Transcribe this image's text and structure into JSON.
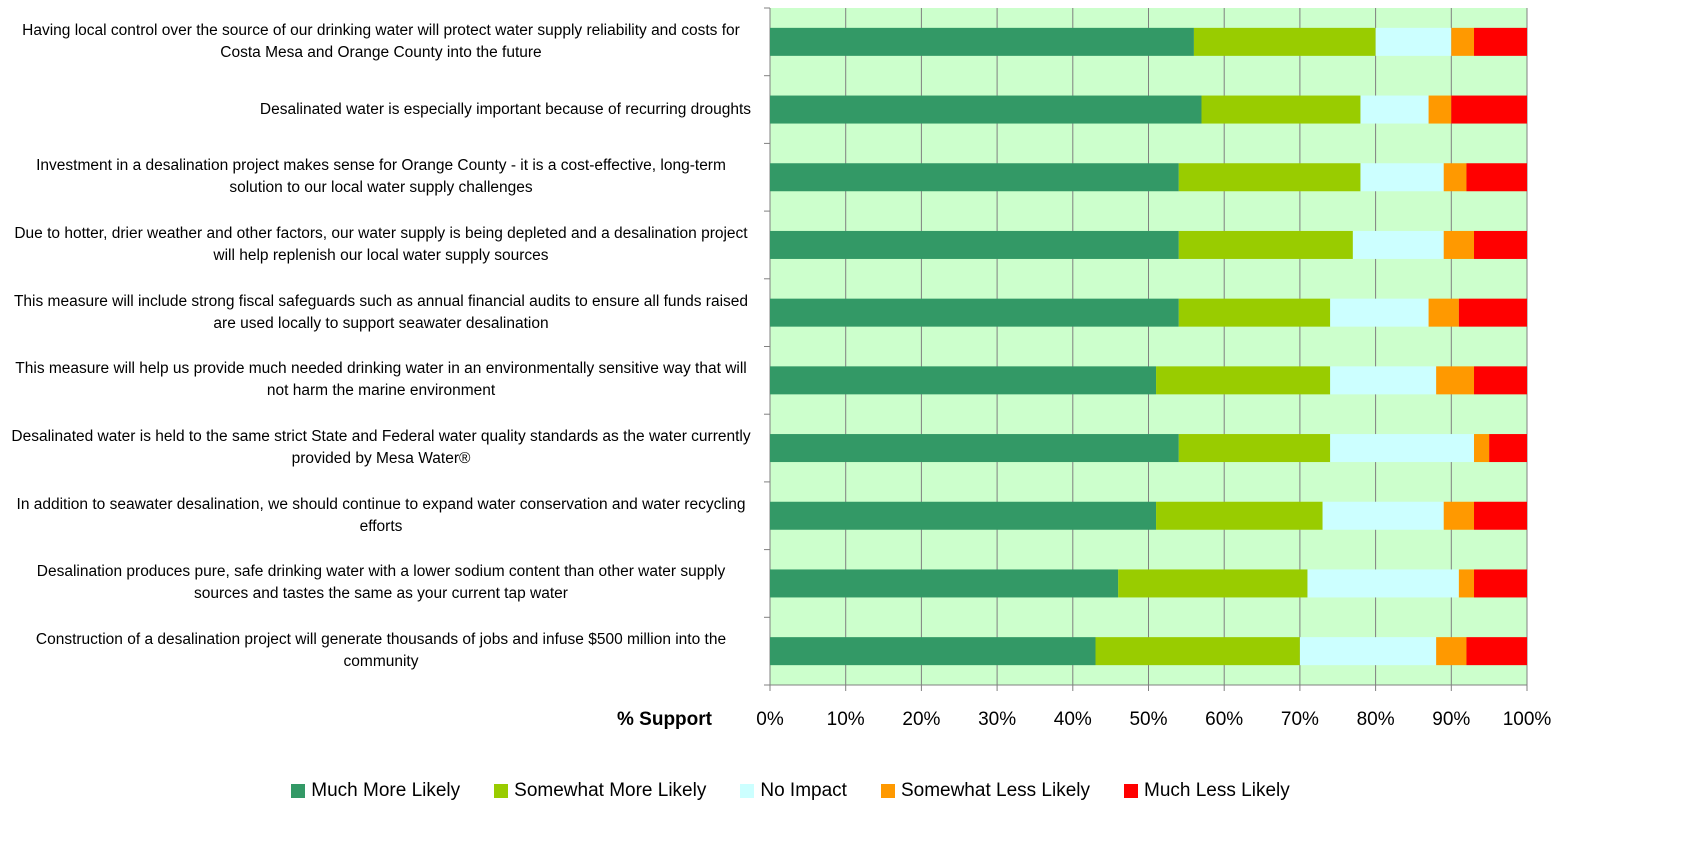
{
  "chart_data": {
    "type": "stacked_barh",
    "categories": [
      "Having local control over the source of our drinking water will protect water supply reliability and costs for Costa Mesa and Orange County into the future",
      "Desalinated water is especially important because of recurring droughts",
      "Investment in a desalination project makes sense for Orange County - it is a cost-effective, long-term solution to our local water supply challenges",
      "Due to hotter, drier weather and other factors, our water supply is being depleted and a desalination project will help replenish our local water supply sources",
      "This measure will include strong fiscal safeguards such as annual financial audits to ensure all funds raised are used locally to support seawater desalination",
      "This measure will help us provide much needed drinking water in an environmentally sensitive way that will not harm the marine environment",
      "Desalinated water is held to the same strict State and Federal water quality standards as the water currently provided by Mesa Water®",
      "In addition to seawater desalination, we should continue to expand water conservation and water recycling efforts",
      "Desalination produces pure, safe drinking water with a lower sodium content than other water supply sources and tastes the same as your current tap water",
      "Construction of a desalination project will generate thousands of jobs and infuse $500 million into the community"
    ],
    "series": [
      {
        "name": "Much More Likely",
        "color": "#339966",
        "values": [
          56,
          57,
          54,
          54,
          54,
          51,
          54,
          51,
          46,
          43
        ]
      },
      {
        "name": "Somewhat More Likely",
        "color": "#99cc00",
        "values": [
          24,
          21,
          24,
          23,
          20,
          23,
          20,
          22,
          25,
          27
        ]
      },
      {
        "name": "No Impact",
        "color": "#ccffff",
        "values": [
          10,
          9,
          11,
          12,
          13,
          14,
          19,
          16,
          20,
          18
        ]
      },
      {
        "name": "Somewhat Less Likely",
        "color": "#ff9900",
        "values": [
          3,
          3,
          3,
          4,
          4,
          5,
          2,
          4,
          2,
          4
        ]
      },
      {
        "name": "Much Less Likely",
        "color": "#ff0000",
        "values": [
          7,
          10,
          8,
          7,
          9,
          7,
          5,
          7,
          7,
          8
        ]
      }
    ],
    "xlabel": "% Support",
    "xlim": [
      0,
      100
    ],
    "xticks": [
      {
        "value": 0,
        "label": "0%"
      },
      {
        "value": 10,
        "label": "10%"
      },
      {
        "value": 20,
        "label": "20%"
      },
      {
        "value": 30,
        "label": "30%"
      },
      {
        "value": 40,
        "label": "40%"
      },
      {
        "value": 50,
        "label": "50%"
      },
      {
        "value": 60,
        "label": "60%"
      },
      {
        "value": 70,
        "label": "70%"
      },
      {
        "value": 80,
        "label": "80%"
      },
      {
        "value": 90,
        "label": "90%"
      },
      {
        "value": 100,
        "label": "100%"
      }
    ],
    "grid": true,
    "background": "#ccffcc"
  }
}
